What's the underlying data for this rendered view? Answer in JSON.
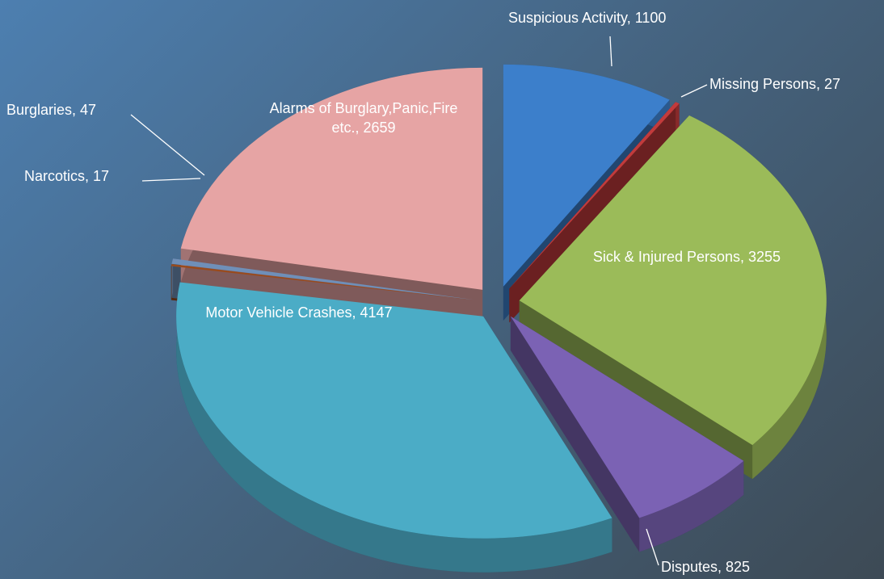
{
  "chart_data": {
    "type": "pie",
    "values": [
      1100,
      27,
      3255,
      825,
      4147,
      17,
      47,
      2659
    ],
    "value_labels": [
      "Suspicious Activity, 1100",
      "Missing Persons, 27",
      "Sick & Injured Persons, 3255",
      "Disputes, 825",
      "Motor Vehicle Crashes, 4147",
      "Narcotics, 17",
      "Burglaries, 47",
      "Alarms of Burglary,Panic,Fire etc., 2659"
    ],
    "colors": [
      "#3c7fcb",
      "#c23b3c",
      "#9bbb59",
      "#7b62b4",
      "#4bacc6",
      "#9a4b1c",
      "#6f8fb8",
      "#e6a4a4"
    ]
  }
}
